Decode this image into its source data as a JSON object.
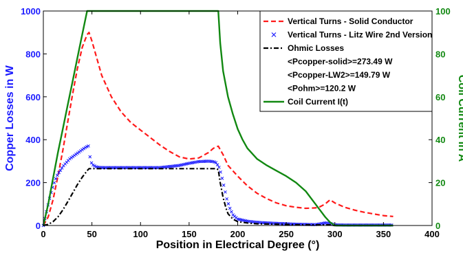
{
  "colors": {
    "solid": "#ff1a1a",
    "litz": "#1a1aff",
    "ohmic": "#000000",
    "current": "#118811",
    "left_axis": "#1a1aff",
    "right_axis": "#118811"
  },
  "chart_data": {
    "type": "line",
    "title": "",
    "xlabel": "Position in Electrical Degree (°)",
    "ylabel": "Copper Losses in W",
    "ylabel_right": "Coil Current in A",
    "xlim": [
      0,
      400
    ],
    "ylim": [
      0,
      1000
    ],
    "ylim_right": [
      0,
      100
    ],
    "xticks": [
      0,
      50,
      100,
      150,
      200,
      250,
      300,
      350,
      400
    ],
    "yticks": [
      0,
      200,
      400,
      600,
      800,
      1000
    ],
    "yticks_right": [
      0,
      20,
      40,
      60,
      80,
      100
    ],
    "grid": false,
    "legend_position": "top-right",
    "series": [
      {
        "name": "Vertical Turns - Solid Conductor",
        "style": "dashed",
        "axis": "left",
        "x": [
          0,
          5,
          10,
          15,
          20,
          25,
          30,
          35,
          40,
          45,
          47,
          50,
          55,
          60,
          70,
          80,
          90,
          100,
          110,
          120,
          130,
          140,
          150,
          160,
          170,
          175,
          180,
          185,
          190,
          200,
          210,
          220,
          230,
          240,
          250,
          260,
          270,
          280,
          285,
          290,
          295,
          300,
          310,
          320,
          330,
          340,
          350,
          360
        ],
        "y": [
          0,
          40,
          120,
          230,
          350,
          480,
          610,
          730,
          830,
          890,
          900,
          860,
          780,
          700,
          600,
          530,
          480,
          445,
          410,
          375,
          345,
          320,
          310,
          315,
          340,
          360,
          370,
          330,
          280,
          230,
          185,
          150,
          125,
          105,
          92,
          85,
          80,
          82,
          88,
          100,
          120,
          105,
          85,
          72,
          62,
          54,
          46,
          42
        ]
      },
      {
        "name": "Vertical Turns - Litz Wire 2nd Version",
        "style": "markers-x",
        "axis": "left",
        "x": [
          0,
          3,
          6,
          9,
          12,
          15,
          18,
          21,
          24,
          27,
          30,
          33,
          36,
          39,
          42,
          45,
          47,
          48,
          50,
          55,
          60,
          70,
          80,
          90,
          100,
          110,
          120,
          130,
          140,
          150,
          160,
          170,
          175,
          178,
          181,
          183,
          185,
          187,
          189,
          192,
          195,
          200,
          210,
          220,
          230,
          240,
          250,
          260,
          270,
          280,
          290,
          295,
          300,
          310,
          320,
          330,
          340,
          350,
          360
        ],
        "y": [
          0,
          60,
          120,
          170,
          210,
          240,
          260,
          280,
          295,
          310,
          320,
          330,
          340,
          350,
          360,
          368,
          372,
          320,
          285,
          272,
          270,
          270,
          270,
          270,
          270,
          270,
          270,
          275,
          280,
          290,
          298,
          300,
          298,
          292,
          270,
          240,
          200,
          160,
          120,
          80,
          50,
          30,
          20,
          15,
          12,
          10,
          8,
          6,
          5,
          4,
          12,
          10,
          3,
          2,
          2,
          2,
          2,
          2,
          2
        ]
      },
      {
        "name": "Ohmic Losses",
        "style": "dash-dot",
        "axis": "left",
        "x": [
          0,
          5,
          10,
          15,
          20,
          25,
          30,
          35,
          40,
          45,
          47,
          50,
          60,
          80,
          100,
          120,
          140,
          160,
          170,
          178,
          180,
          182,
          185,
          188,
          190,
          195,
          200,
          210,
          220,
          240,
          260,
          280,
          290,
          295,
          300,
          320,
          340,
          360
        ],
        "y": [
          0,
          5,
          18,
          40,
          72,
          110,
          150,
          190,
          225,
          255,
          265,
          265,
          265,
          265,
          265,
          265,
          265,
          265,
          265,
          265,
          260,
          200,
          130,
          80,
          55,
          30,
          18,
          12,
          8,
          6,
          4,
          3,
          3,
          3,
          0,
          0,
          0,
          0
        ]
      },
      {
        "name": "Coil Current I(t)",
        "style": "solid",
        "axis": "right",
        "x": [
          0,
          5,
          10,
          15,
          20,
          25,
          30,
          35,
          40,
          45,
          50,
          100,
          150,
          180,
          182,
          185,
          190,
          195,
          200,
          205,
          210,
          220,
          230,
          240,
          250,
          260,
          270,
          280,
          285,
          290,
          295,
          300,
          360
        ],
        "y": [
          0,
          10,
          22,
          34,
          45,
          56,
          67,
          78,
          89,
          100,
          100,
          100,
          100,
          100,
          85,
          72,
          60,
          52,
          45,
          40,
          36,
          31,
          28,
          25.5,
          23,
          20,
          16,
          10,
          7,
          4,
          1.5,
          0,
          0
        ]
      }
    ],
    "annotations": [
      "<Pcopper-solid>=273.49 W",
      "<Pcopper-LW2>=149.79 W",
      "<Pohm>=120.2 W"
    ]
  }
}
